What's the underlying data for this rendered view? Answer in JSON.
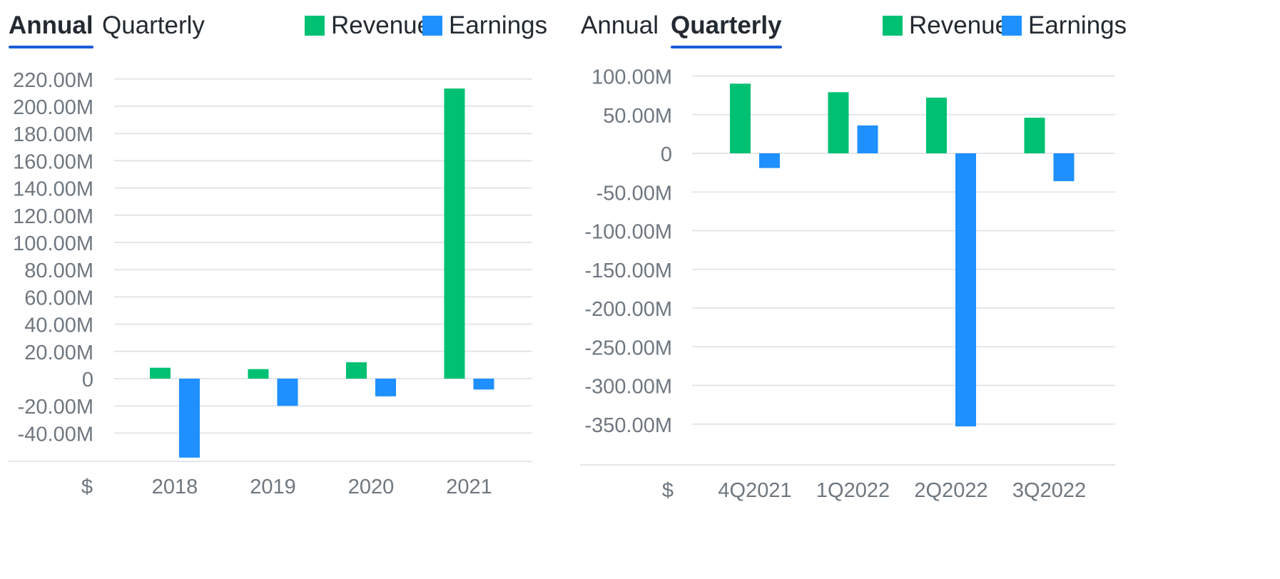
{
  "colors": {
    "revenue": "#00c073",
    "earnings": "#1e90ff",
    "grid": "#e3e6ea",
    "axis_text": "#6e7780",
    "tab_underline": "#1a5cd6"
  },
  "annual_panel": {
    "tabs": {
      "annual": "Annual",
      "quarterly": "Quarterly",
      "active": "annual"
    },
    "legend": {
      "revenue": "Revenue",
      "earnings": "Earnings"
    },
    "currency": "$"
  },
  "quarterly_panel": {
    "tabs": {
      "annual": "Annual",
      "quarterly": "Quarterly",
      "active": "quarterly"
    },
    "legend": {
      "revenue": "Revenue",
      "earnings": "Earnings"
    },
    "currency": "$"
  },
  "chart_data": [
    {
      "type": "bar",
      "categories": [
        "2018",
        "2019",
        "2020",
        "2021"
      ],
      "series": [
        {
          "name": "Revenue",
          "values": [
            8,
            7,
            12,
            213
          ]
        },
        {
          "name": "Earnings",
          "values": [
            -58,
            -20,
            -13,
            -8
          ]
        }
      ],
      "ylim": [
        -60,
        220
      ],
      "yticks": [
        220,
        200,
        180,
        160,
        140,
        120,
        100,
        80,
        60,
        40,
        20,
        0,
        -20,
        -40
      ],
      "ytick_labels": [
        "220.00M",
        "200.00M",
        "180.00M",
        "160.00M",
        "140.00M",
        "120.00M",
        "100.00M",
        "80.00M",
        "60.00M",
        "40.00M",
        "20.00M",
        "0",
        "-20.00M",
        "-40.00M"
      ],
      "grid": true,
      "legend": "top-right"
    },
    {
      "type": "bar",
      "categories": [
        "4Q2021",
        "1Q2022",
        "2Q2022",
        "3Q2022"
      ],
      "series": [
        {
          "name": "Revenue",
          "values": [
            90,
            79,
            72,
            46
          ]
        },
        {
          "name": "Earnings",
          "values": [
            -19,
            36,
            -353,
            -36
          ]
        }
      ],
      "ylim": [
        -400,
        100
      ],
      "yticks": [
        100,
        50,
        0,
        -50,
        -100,
        -150,
        -200,
        -250,
        -300,
        -350
      ],
      "ytick_labels": [
        "100.00M",
        "50.00M",
        "0",
        "-50.00M",
        "-100.00M",
        "-150.00M",
        "-200.00M",
        "-250.00M",
        "-300.00M",
        "-350.00M"
      ],
      "grid": true,
      "legend": "top-right"
    }
  ]
}
